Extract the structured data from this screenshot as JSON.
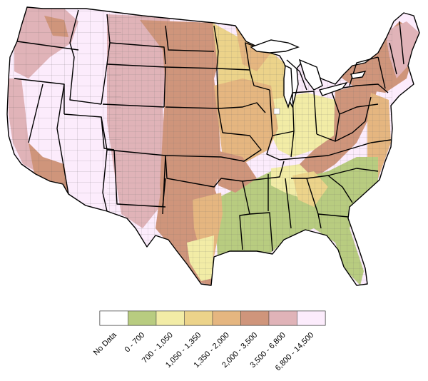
{
  "legend": {
    "items": [
      {
        "label": "No Data",
        "color": "#ffffff"
      },
      {
        "label": "0 - 700",
        "color": "#b8cc80"
      },
      {
        "label": "700 - 1,050",
        "color": "#f2eca6"
      },
      {
        "label": "1,050 - 1,350",
        "color": "#ecd38a"
      },
      {
        "label": "1,350 - 2,000",
        "color": "#e5b680"
      },
      {
        "label": "2,000 - 3,500",
        "color": "#cf957b"
      },
      {
        "label": "3,500 - 6,800",
        "color": "#e0b3b8"
      },
      {
        "label": "6,800 - 14,500",
        "color": "#fcecfc"
      }
    ]
  },
  "map": {
    "region": "Contiguous United States",
    "boundary_color": "#000000",
    "county_line_color": "#555555"
  }
}
